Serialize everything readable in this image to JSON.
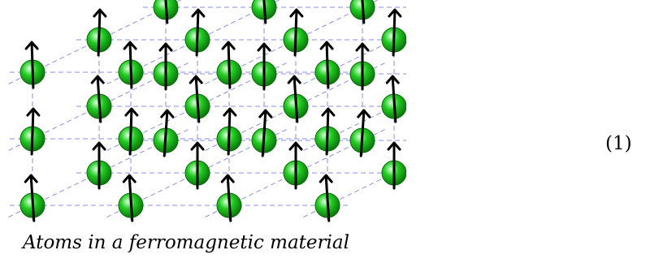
{
  "figure": {
    "caption": "Atoms in a ferromagnetic material",
    "equation_number": "(1)"
  },
  "lattice": {
    "layers": 3,
    "rows": 3,
    "columns": 4,
    "spin_direction": "up",
    "colors": {
      "atom_fill": "#22cc22",
      "atom_stroke": "#0a6a0a",
      "grid_line": "#8e8ee6",
      "arrow": "#000000"
    }
  }
}
